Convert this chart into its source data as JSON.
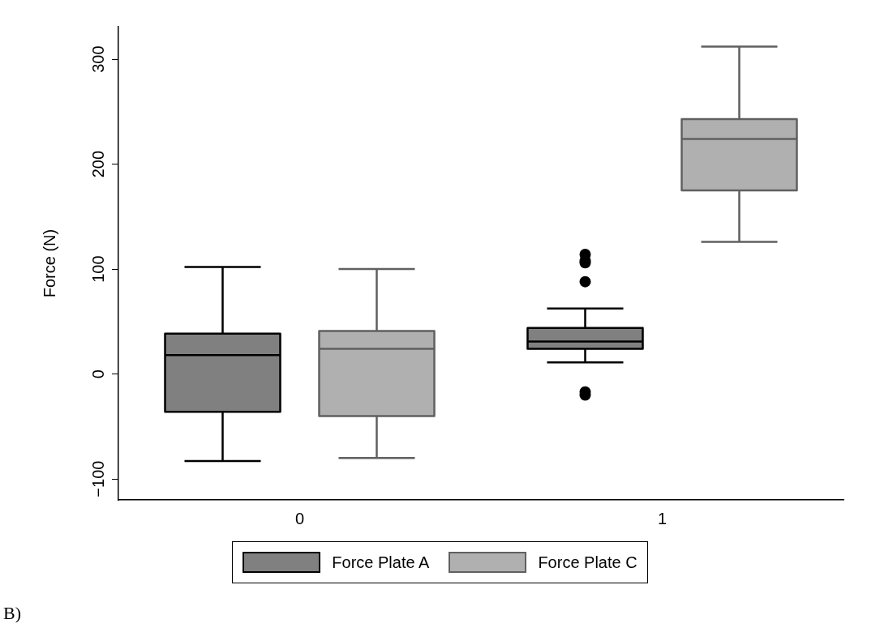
{
  "chart_data": {
    "type": "box",
    "ylabel": "Force (N)",
    "categories": [
      "0",
      "1"
    ],
    "series": [
      {
        "name": "Force Plate A",
        "color": "#808080",
        "boxes": [
          {
            "low": -83,
            "q1": -36,
            "median": 18,
            "q3": 38.5,
            "high": 102
          },
          {
            "low": 11,
            "q1": 24,
            "median": 31,
            "q3": 44,
            "high": 62.5,
            "outliers": [
              114,
              108,
              106,
              88,
              -17,
              -20
            ]
          }
        ]
      },
      {
        "name": "Force Plate C",
        "color": "#b0b0b0",
        "boxes": [
          {
            "low": -80,
            "q1": -40,
            "median": 24,
            "q3": 41,
            "high": 100
          },
          {
            "low": 126,
            "q1": 175,
            "median": 224,
            "q3": 243,
            "high": 312
          }
        ]
      }
    ],
    "ylim": [
      -120,
      331
    ],
    "yticks": [
      {
        "value": -100,
        "label": "−100"
      },
      0,
      100,
      200,
      300
    ],
    "grid": false,
    "legend": "bottom",
    "annotations": [
      "B)"
    ]
  }
}
